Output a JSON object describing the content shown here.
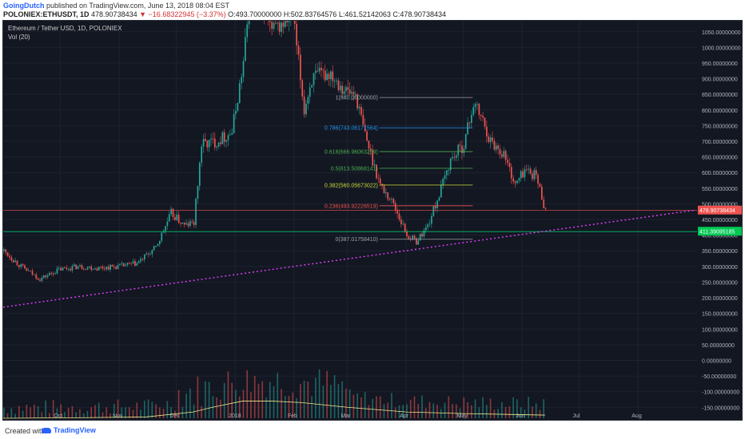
{
  "header": {
    "author": "GoingDutch",
    "published_text": "published on TradingView.com, June 13, 2018 08:04 EST",
    "symbol": "POLONIEX:ETHUSDT, 1D",
    "last": "478.90738434",
    "change": "−16.68322945 (−3.37%)",
    "open": "O:493.70000000",
    "high": "H:502.83764576",
    "low": "L:461.52142063",
    "close": "C:478.90738434"
  },
  "legend": {
    "title": "Ethereum / Tether USD, 1D, POLONIEX",
    "volume": "Vol (20)"
  },
  "footer": {
    "created_with": "Created with",
    "brand": "TradingView"
  },
  "colors": {
    "background": "#131722",
    "grid": "#1e2230",
    "up": "#26a69a",
    "down": "#ef5350",
    "trendline": "#e040fb",
    "fib_1": "#9aa0a6",
    "fib_786": "#2196f3",
    "fib_618": "#4caf50",
    "fib_5": "#4caf50",
    "fib_382": "#cddc39",
    "fib_236": "#ef5350",
    "fib_0": "#9aa0a6",
    "support": "#00e676",
    "price_label": "#ef5350",
    "support_label": "#00c853",
    "volume_ma": "#f0e68c"
  },
  "chart_data": {
    "type": "candlestick",
    "y_axis_labels": [
      "1050.00000000",
      "1000.00000000",
      "950.00000000",
      "900.00000000",
      "850.00000000",
      "800.00000000",
      "750.00000000",
      "700.00000000",
      "650.00000000",
      "600.00000000",
      "550.00000000",
      "500.00000000",
      "450.00000000",
      "400.00000000",
      "350.00000000",
      "300.00000000",
      "250.00000000",
      "200.00000000",
      "150.00000000",
      "100.00000000",
      "50.00000000",
      "0.00000000",
      "-50.00000000",
      "-100.00000000",
      "-150.00000000"
    ],
    "y_axis_values": [
      1050,
      1000,
      950,
      900,
      850,
      800,
      750,
      700,
      650,
      600,
      550,
      500,
      450,
      400,
      350,
      300,
      250,
      200,
      150,
      100,
      50,
      0,
      -50,
      -100,
      -150
    ],
    "x_axis_labels": [
      "Oct",
      "Nov",
      "Dec",
      "2018",
      "Feb",
      "Mar",
      "Apr",
      "May",
      "Jun",
      "Jul",
      "Aug"
    ],
    "ylim": [
      -185,
      1080
    ],
    "months_from_sep": [
      1,
      2,
      3,
      4,
      5,
      6,
      7,
      8,
      9,
      10,
      11
    ],
    "fib_levels": [
      {
        "label": "1(840.00000000)",
        "value": 840,
        "color": "#9aa0a6"
      },
      {
        "label": "0.786(743.06171564)",
        "value": 743.06,
        "color": "#2196f3"
      },
      {
        "label": "0.618(666.96063259)",
        "value": 666.96,
        "color": "#4caf50"
      },
      {
        "label": "0.5(613.50868141)",
        "value": 613.51,
        "color": "#4caf50"
      },
      {
        "label": "0.382(560.05673022)",
        "value": 560.06,
        "color": "#cddc39"
      },
      {
        "label": "0.236(493.92226519)",
        "value": 493.92,
        "color": "#ef5350"
      },
      {
        "label": "0(387.01758410)",
        "value": 387.02,
        "color": "#9aa0a6"
      }
    ],
    "current_price": {
      "label": "478.90738434",
      "value": 478.91
    },
    "support": {
      "label": "411.39095185",
      "value": 411.39
    },
    "trendline": {
      "start": {
        "x": "2017-09-01",
        "y": 170
      },
      "end": {
        "x": "2018-08-31",
        "y": 480
      }
    },
    "price_points": [
      [
        "2017-09-01",
        350
      ],
      [
        "2017-09-10",
        300
      ],
      [
        "2017-09-20",
        260
      ],
      [
        "2017-09-30",
        290
      ],
      [
        "2017-10-10",
        300
      ],
      [
        "2017-10-20",
        295
      ],
      [
        "2017-10-31",
        300
      ],
      [
        "2017-11-10",
        310
      ],
      [
        "2017-11-20",
        360
      ],
      [
        "2017-11-28",
        470
      ],
      [
        "2017-12-05",
        430
      ],
      [
        "2017-12-10",
        440
      ],
      [
        "2017-12-14",
        690
      ],
      [
        "2017-12-22",
        700
      ],
      [
        "2017-12-30",
        730
      ],
      [
        "2018-01-05",
        950
      ],
      [
        "2018-01-10",
        1250
      ],
      [
        "2018-01-20",
        1050
      ],
      [
        "2018-01-31",
        1100
      ],
      [
        "2018-02-06",
        800
      ],
      [
        "2018-02-10",
        900
      ],
      [
        "2018-02-20",
        920
      ],
      [
        "2018-02-28",
        860
      ],
      [
        "2018-03-05",
        850
      ],
      [
        "2018-03-10",
        720
      ],
      [
        "2018-03-18",
        560
      ],
      [
        "2018-03-25",
        500
      ],
      [
        "2018-04-01",
        400
      ],
      [
        "2018-04-06",
        380
      ],
      [
        "2018-04-12",
        430
      ],
      [
        "2018-04-18",
        530
      ],
      [
        "2018-04-24",
        640
      ],
      [
        "2018-05-01",
        690
      ],
      [
        "2018-05-06",
        820
      ],
      [
        "2018-05-10",
        780
      ],
      [
        "2018-05-15",
        700
      ],
      [
        "2018-05-22",
        660
      ],
      [
        "2018-05-28",
        560
      ],
      [
        "2018-06-02",
        610
      ],
      [
        "2018-06-08",
        590
      ],
      [
        "2018-06-13",
        479
      ]
    ],
    "volume_ma": [
      [
        "2017-09-01",
        -185
      ],
      [
        "2017-10-15",
        -183
      ],
      [
        "2017-11-15",
        -181
      ],
      [
        "2017-12-10",
        -165
      ],
      [
        "2017-12-20",
        -150
      ],
      [
        "2018-01-05",
        -130
      ],
      [
        "2018-01-20",
        -130
      ],
      [
        "2018-02-05",
        -135
      ],
      [
        "2018-03-01",
        -150
      ],
      [
        "2018-04-01",
        -165
      ],
      [
        "2018-05-01",
        -170
      ],
      [
        "2018-06-13",
        -175
      ]
    ]
  }
}
